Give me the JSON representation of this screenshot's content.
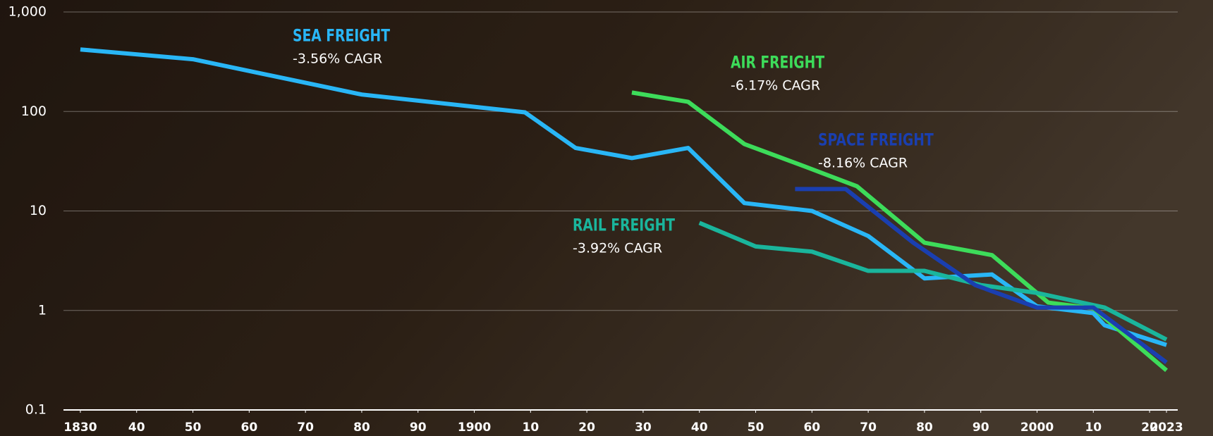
{
  "chart_data": {
    "type": "line",
    "log_scale": true,
    "grid": true,
    "xlim": [
      1827,
      2025
    ],
    "xticks": [
      {
        "value": 1830,
        "label": "1830"
      },
      {
        "value": 1840,
        "label": "40"
      },
      {
        "value": 1850,
        "label": "50"
      },
      {
        "value": 1860,
        "label": "60"
      },
      {
        "value": 1870,
        "label": "70"
      },
      {
        "value": 1880,
        "label": "80"
      },
      {
        "value": 1890,
        "label": "90"
      },
      1900,
      {
        "value": 1910,
        "label": "10"
      },
      {
        "value": 1920,
        "label": "20"
      },
      {
        "value": 1930,
        "label": "30"
      },
      {
        "value": 1940,
        "label": "40"
      },
      {
        "value": 1950,
        "label": "50"
      },
      {
        "value": 1960,
        "label": "60"
      },
      {
        "value": 1970,
        "label": "70"
      },
      {
        "value": 1980,
        "label": "80"
      },
      {
        "value": 1990,
        "label": "90"
      },
      2000,
      {
        "value": 2010,
        "label": "10"
      },
      {
        "value": 2020,
        "label": "20"
      },
      2023
    ],
    "ylim": [
      0.1,
      1000
    ],
    "yticks": [
      0.1,
      1,
      10,
      100,
      {
        "value": 1000,
        "label": "1,000"
      }
    ],
    "series": [
      {
        "name": "SEA FREIGHT",
        "annotation": "-3.56% CAGR",
        "color": "#29b6f6",
        "x": [
          1830,
          1850,
          1880,
          1909,
          1918,
          1928,
          1938,
          1948,
          1960,
          1970,
          1980,
          1992,
          2000,
          2010,
          2012,
          2023
        ],
        "values": [
          420,
          335,
          148,
          98,
          43,
          34,
          43,
          12,
          10,
          5.6,
          2.1,
          2.3,
          1.1,
          0.94,
          0.71,
          0.45
        ]
      },
      {
        "name": "AIR FREIGHT",
        "annotation": "-6.17% CAGR",
        "color": "#3ddc5a",
        "x": [
          1928,
          1938,
          1948,
          1958,
          1968,
          1980,
          1992,
          2002,
          2010,
          2023
        ],
        "values": [
          155,
          125,
          47,
          29,
          17.7,
          4.8,
          3.6,
          1.2,
          1.05,
          0.25
        ]
      },
      {
        "name": "RAIL FREIGHT",
        "annotation": "-3.92% CAGR",
        "color": "#1ab59c",
        "x": [
          1940,
          1950,
          1960,
          1970,
          1980,
          1990,
          2000,
          2012,
          2023
        ],
        "values": [
          7.6,
          4.4,
          3.9,
          2.5,
          2.5,
          1.8,
          1.5,
          1.07,
          0.51
        ]
      },
      {
        "name": "SPACE FREIGHT",
        "annotation": "-8.16% CAGR",
        "color": "#1a3fb0",
        "x": [
          1957,
          1966,
          1978,
          1989,
          2000,
          2010,
          2023
        ],
        "values": [
          16.6,
          16.6,
          4.8,
          1.8,
          1.07,
          1.07,
          0.3
        ]
      }
    ]
  }
}
